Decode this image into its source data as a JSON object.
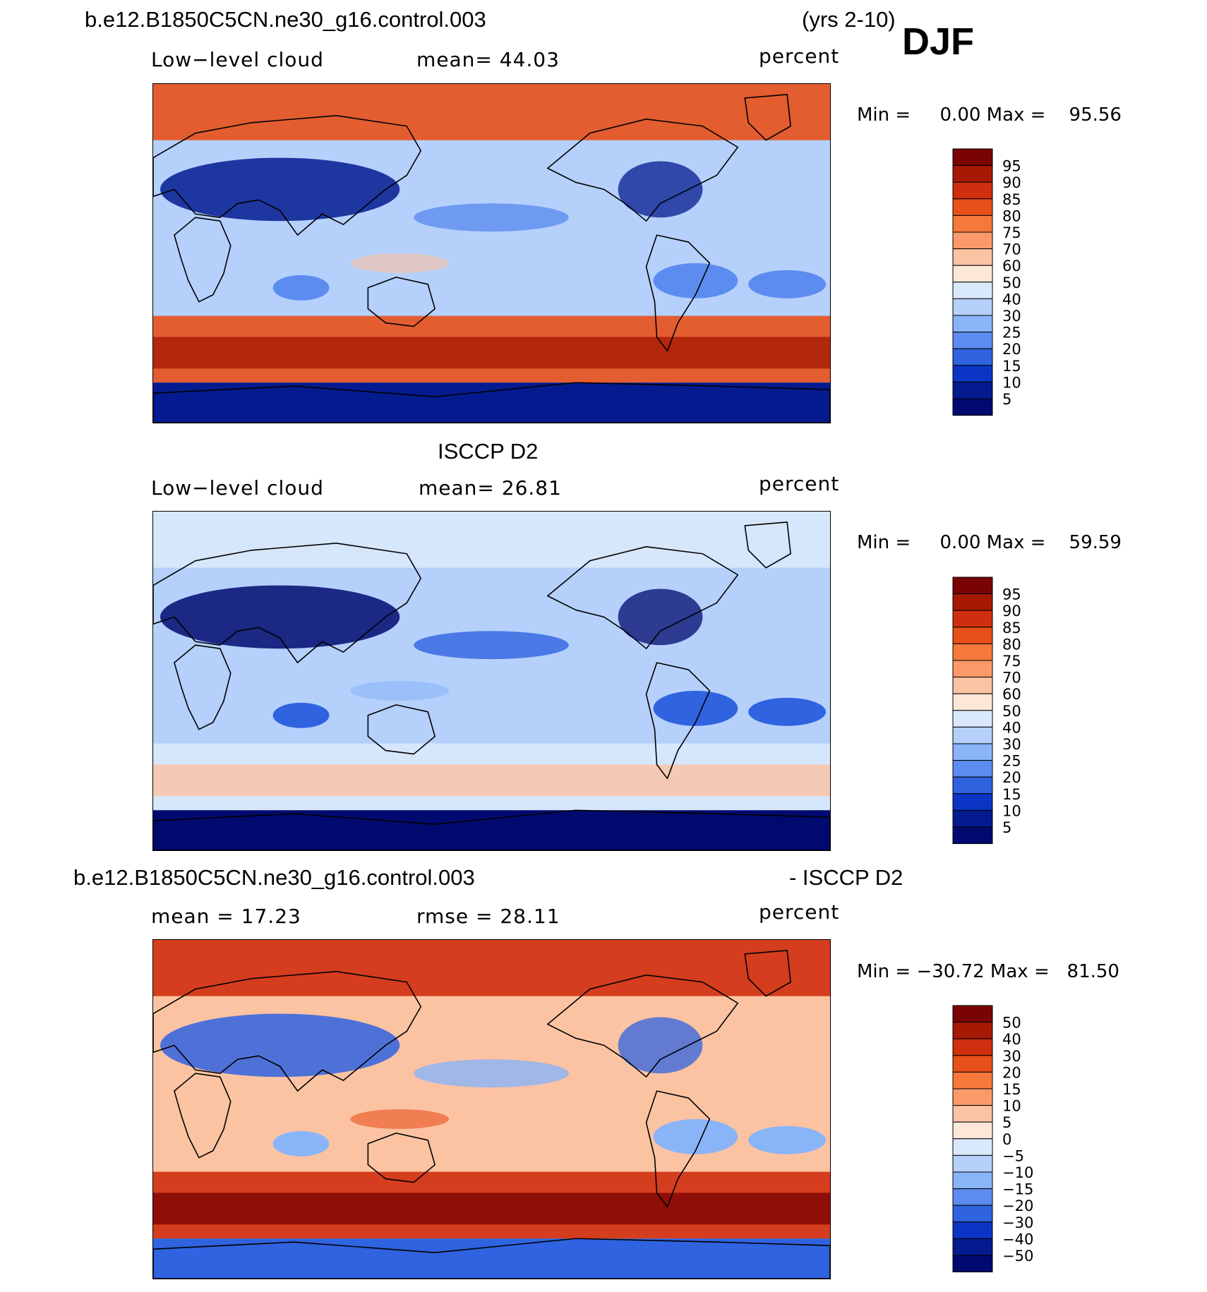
{
  "header": {
    "case_title": "b.e12.B1850C5CN.ne30_g16.control.003",
    "years": "(yrs 2-10)",
    "season": "DJF"
  },
  "panels": [
    {
      "title": "",
      "left_label": "Low−level cloud",
      "center_label": "mean=   44.03",
      "right_label": "percent",
      "minmax": "Min =     0.00 Max =    95.56",
      "colorbar_levels": [
        "95",
        "90",
        "85",
        "80",
        "75",
        "70",
        "60",
        "50",
        "40",
        "30",
        "25",
        "20",
        "15",
        "10",
        "5"
      ],
      "colorbar_colors": [
        "#7a0403",
        "#a61a05",
        "#cf2f0e",
        "#e8501a",
        "#f6783a",
        "#fa9a6b",
        "#fcc3a3",
        "#fde8d8",
        "#d9e8fb",
        "#b5d0fb",
        "#8ab4f8",
        "#5c8cf0",
        "#2f63e0",
        "#0b35c5",
        "#031b8f",
        "#000a6e"
      ],
      "map_colors": {
        "ocean": "#b5d0fb",
        "high": "#e8501a",
        "very_high": "#a61a05",
        "low": "#031b8f",
        "mid_low": "#5c8cf0",
        "mid": "#fcc3a3"
      }
    },
    {
      "title": "ISCCP D2",
      "left_label": "Low−level cloud",
      "center_label": "mean=   26.81",
      "right_label": "percent",
      "minmax": "Min =     0.00 Max =    59.59",
      "colorbar_levels": [
        "95",
        "90",
        "85",
        "80",
        "75",
        "70",
        "60",
        "50",
        "40",
        "30",
        "25",
        "20",
        "15",
        "10",
        "5"
      ],
      "colorbar_colors": [
        "#7a0403",
        "#a61a05",
        "#cf2f0e",
        "#e8501a",
        "#f6783a",
        "#fa9a6b",
        "#fcc3a3",
        "#fde8d8",
        "#d9e8fb",
        "#b5d0fb",
        "#8ab4f8",
        "#5c8cf0",
        "#2f63e0",
        "#0b35c5",
        "#031b8f",
        "#000a6e"
      ],
      "map_colors": {
        "ocean": "#b5d0fb",
        "high": "#d9e8fb",
        "very_high": "#fcc3a3",
        "low": "#000a6e",
        "mid_low": "#2f63e0",
        "mid": "#8ab4f8"
      }
    },
    {
      "title_left": "b.e12.B1850C5CN.ne30_g16.control.003",
      "title_right": "- ISCCP D2",
      "left_label": "mean =   17.23",
      "center_label": "rmse =   28.11",
      "right_label": "percent",
      "minmax": "Min = −30.72 Max =   81.50",
      "colorbar_levels": [
        "50",
        "40",
        "30",
        "20",
        "15",
        "10",
        "5",
        "0",
        "−5",
        "−10",
        "−15",
        "−20",
        "−30",
        "−40",
        "−50"
      ],
      "colorbar_colors": [
        "#7a0403",
        "#a61a05",
        "#cf2f0e",
        "#e8501a",
        "#f6783a",
        "#fa9a6b",
        "#fcc3a3",
        "#fde8d8",
        "#d9e8fb",
        "#b5d0fb",
        "#8ab4f8",
        "#5c8cf0",
        "#2f63e0",
        "#0b35c5",
        "#031b8f",
        "#000a6e"
      ],
      "map_colors": {
        "ocean": "#fcc3a3",
        "high": "#cf2f0e",
        "very_high": "#7a0403",
        "low": "#2f63e0",
        "mid_low": "#8ab4f8",
        "mid": "#e8501a"
      }
    }
  ],
  "chart_data": [
    {
      "type": "heatmap",
      "title": "b.e12.B1850C5CN.ne30_g16.control.003 (yrs 2-10) DJF",
      "variable": "Low−level cloud",
      "units": "percent",
      "mean": 44.03,
      "min": 0.0,
      "max": 95.56,
      "contour_levels": [
        5,
        10,
        15,
        20,
        25,
        30,
        40,
        50,
        60,
        70,
        75,
        80,
        85,
        90,
        95
      ]
    },
    {
      "type": "heatmap",
      "title": "ISCCP D2",
      "variable": "Low−level cloud",
      "units": "percent",
      "mean": 26.81,
      "min": 0.0,
      "max": 59.59,
      "contour_levels": [
        5,
        10,
        15,
        20,
        25,
        30,
        40,
        50,
        60,
        70,
        75,
        80,
        85,
        90,
        95
      ]
    },
    {
      "type": "heatmap",
      "title": "b.e12.B1850C5CN.ne30_g16.control.003 - ISCCP D2",
      "units": "percent",
      "mean": 17.23,
      "rmse": 28.11,
      "min": -30.72,
      "max": 81.5,
      "contour_levels": [
        -50,
        -40,
        -30,
        -20,
        -15,
        -10,
        -5,
        0,
        5,
        10,
        15,
        20,
        30,
        40,
        50
      ]
    }
  ]
}
